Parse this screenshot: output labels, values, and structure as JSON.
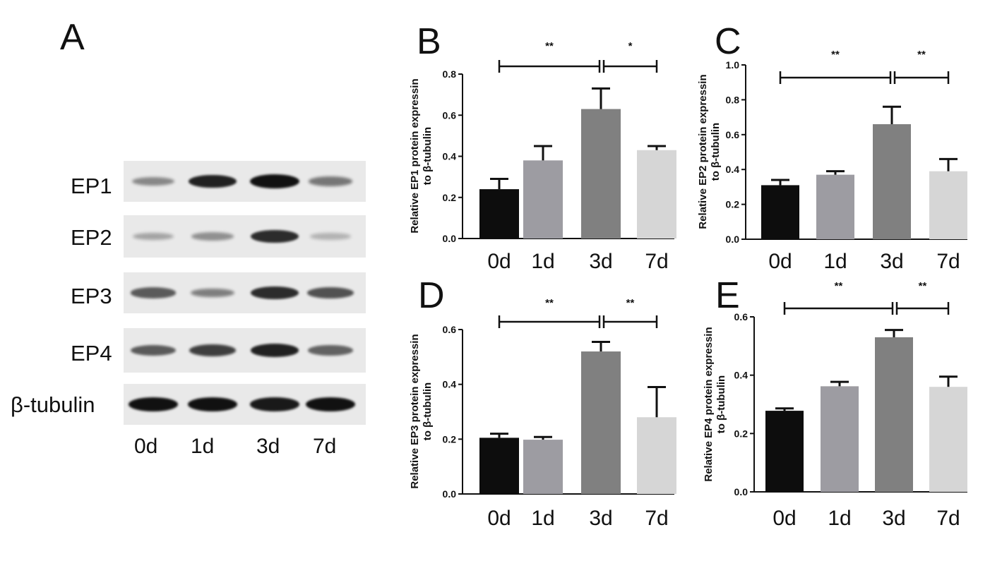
{
  "panels": {
    "A": "A",
    "B": "B",
    "C": "C",
    "D": "D",
    "E": "E"
  },
  "blot": {
    "rows": [
      {
        "label": "EP1",
        "intensities": [
          0.35,
          0.9,
          1.0,
          0.45
        ]
      },
      {
        "label": "EP2",
        "intensities": [
          0.2,
          0.3,
          0.85,
          0.12
        ]
      },
      {
        "label": "EP3",
        "intensities": [
          0.6,
          0.4,
          0.85,
          0.65
        ]
      },
      {
        "label": "EP4",
        "intensities": [
          0.6,
          0.75,
          0.9,
          0.55
        ]
      },
      {
        "label": "β-tubulin",
        "intensities": [
          1.0,
          1.0,
          0.95,
          1.0
        ]
      }
    ],
    "lanes": [
      "0d",
      "1d",
      "3d",
      "7d"
    ]
  },
  "chart_data": [
    {
      "panel": "B",
      "type": "bar",
      "categories": [
        "0d",
        "1d",
        "3d",
        "7d"
      ],
      "values": [
        0.24,
        0.38,
        0.63,
        0.43
      ],
      "errors": [
        0.05,
        0.07,
        0.1,
        0.02
      ],
      "ylabel": [
        "Relative EP1 protein expressin",
        "to β-tubulin"
      ],
      "ylim": [
        0,
        0.8
      ],
      "yticks": [
        "0.0",
        "0.2",
        "0.4",
        "0.6",
        "0.8"
      ],
      "significance": [
        {
          "from": 0,
          "to": 2,
          "label": "**"
        },
        {
          "from": 2,
          "to": 3,
          "label": "*"
        }
      ],
      "colors": [
        "#0d0d0d",
        "#9d9ca2",
        "#808080",
        "#d6d6d6"
      ]
    },
    {
      "panel": "C",
      "type": "bar",
      "categories": [
        "0d",
        "1d",
        "3d",
        "7d"
      ],
      "values": [
        0.31,
        0.37,
        0.66,
        0.39
      ],
      "errors": [
        0.03,
        0.02,
        0.1,
        0.07
      ],
      "ylabel": [
        "Relative EP2 protein expressin",
        "to β-tubulin"
      ],
      "ylim": [
        0,
        1.0
      ],
      "yticks": [
        "0.0",
        "0.2",
        "0.4",
        "0.6",
        "0.8",
        "1.0"
      ],
      "significance": [
        {
          "from": 0,
          "to": 2,
          "label": "**"
        },
        {
          "from": 2,
          "to": 3,
          "label": "**"
        }
      ],
      "colors": [
        "#0d0d0d",
        "#9d9ca2",
        "#808080",
        "#d6d6d6"
      ]
    },
    {
      "panel": "D",
      "type": "bar",
      "categories": [
        "0d",
        "1d",
        "3d",
        "7d"
      ],
      "values": [
        0.205,
        0.198,
        0.52,
        0.28
      ],
      "errors": [
        0.015,
        0.01,
        0.035,
        0.11
      ],
      "ylabel": [
        "Relative EP3 protein expressin",
        "to β-tubulin"
      ],
      "ylim": [
        0,
        0.6
      ],
      "yticks": [
        "0.0",
        "0.2",
        "0.4",
        "0.6"
      ],
      "significance": [
        {
          "from": 0,
          "to": 2,
          "label": "**"
        },
        {
          "from": 2,
          "to": 3,
          "label": "**"
        }
      ],
      "colors": [
        "#0d0d0d",
        "#9d9ca2",
        "#808080",
        "#d6d6d6"
      ]
    },
    {
      "panel": "E",
      "type": "bar",
      "categories": [
        "0d",
        "1d",
        "3d",
        "7d"
      ],
      "values": [
        0.278,
        0.362,
        0.53,
        0.36
      ],
      "errors": [
        0.008,
        0.015,
        0.025,
        0.035
      ],
      "ylabel": [
        "Relative EP4 protein expressin",
        "to β-tubulin"
      ],
      "ylim": [
        0,
        0.6
      ],
      "yticks": [
        "0.0",
        "0.2",
        "0.4",
        "0.6"
      ],
      "significance": [
        {
          "from": 0,
          "to": 2,
          "label": "**"
        },
        {
          "from": 2,
          "to": 3,
          "label": "**"
        }
      ],
      "colors": [
        "#0d0d0d",
        "#9d9ca2",
        "#808080",
        "#d6d6d6"
      ]
    }
  ]
}
